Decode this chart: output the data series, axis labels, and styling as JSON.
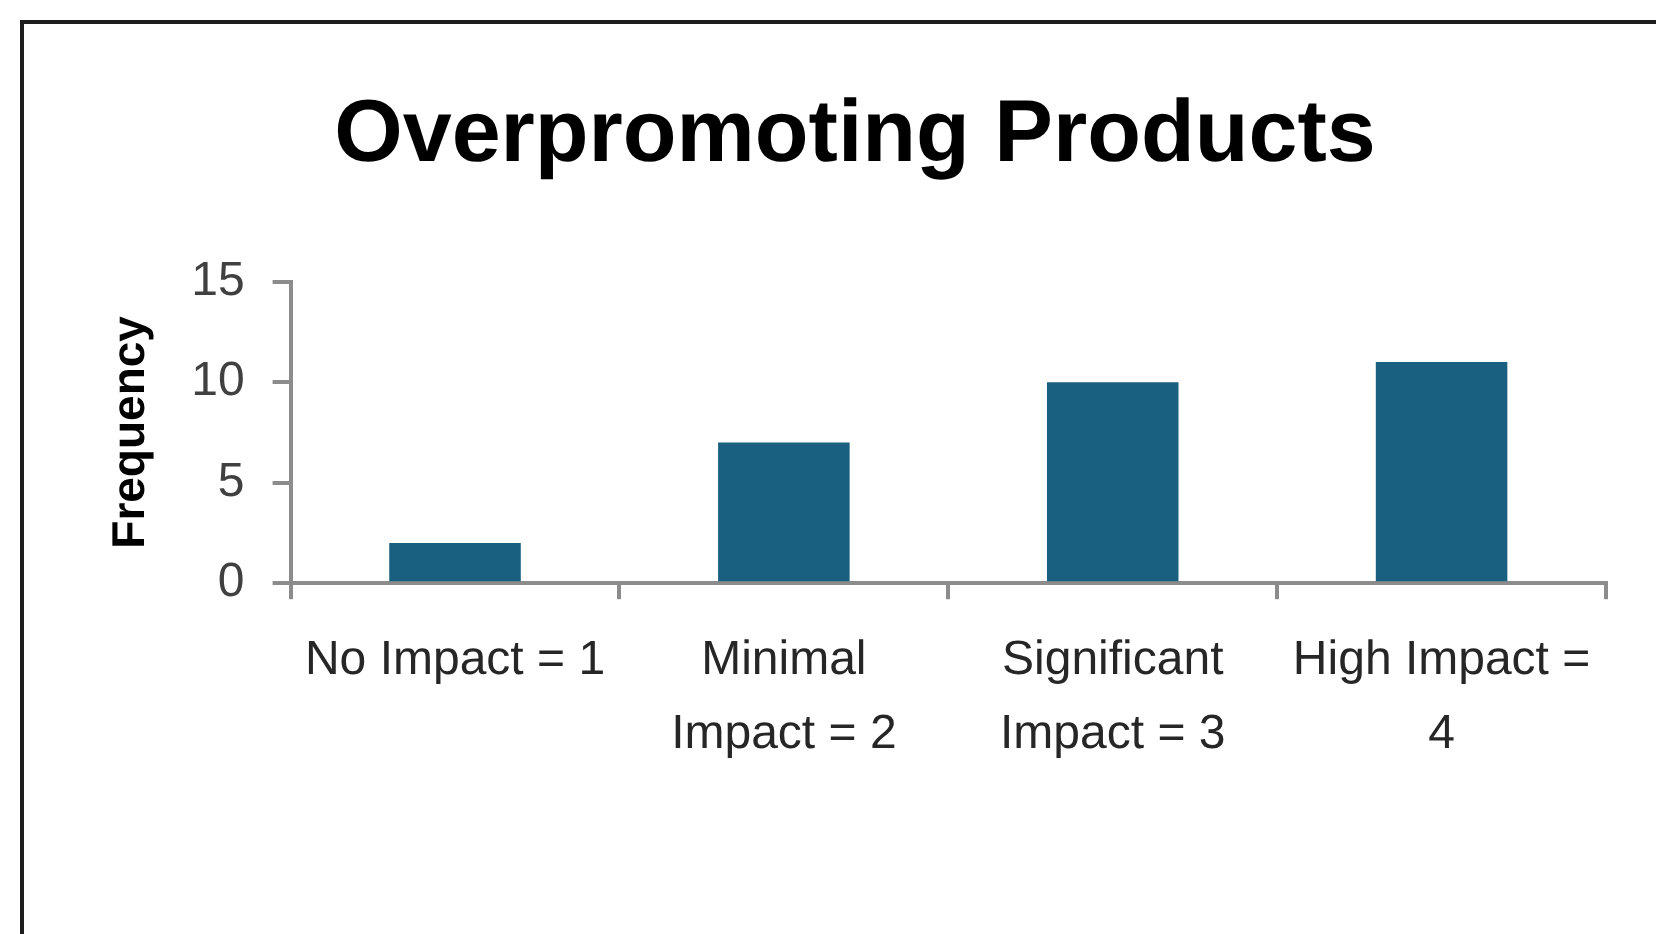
{
  "chart_data": {
    "type": "bar",
    "title": "Overpromoting Products",
    "ylabel": "Frequency",
    "categories": [
      "No Impact = 1",
      "Minimal Impact = 2",
      "Significant Impact = 3",
      "High Impact = 4"
    ],
    "values": [
      2,
      7,
      10,
      11
    ],
    "color": "#185f80",
    "ylim": [
      0,
      15
    ],
    "yticks": [
      0,
      5,
      10,
      15
    ],
    "grid": false
  }
}
